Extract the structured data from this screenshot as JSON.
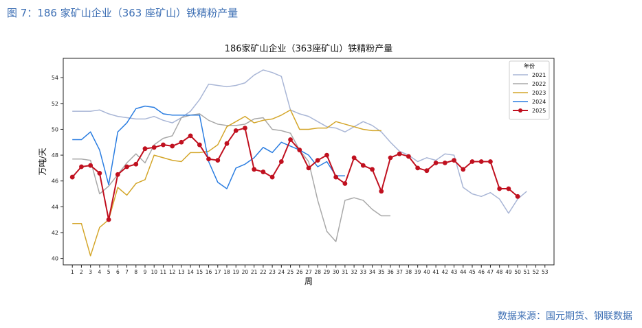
{
  "figure_caption": "图 7：186 家矿山企业（363 座矿山）铁精粉产量",
  "source_note": "数据来源：国元期货、钢联数据",
  "chart_data": {
    "type": "line",
    "title": "186家矿山企业（363座矿山）铁精粉产量",
    "xlabel": "周",
    "ylabel": "万吨/天",
    "ylim": [
      39.5,
      55.5
    ],
    "yticks": [
      40,
      42,
      44,
      46,
      48,
      50,
      52,
      54
    ],
    "x": [
      1,
      2,
      3,
      4,
      5,
      6,
      7,
      8,
      9,
      10,
      11,
      12,
      13,
      14,
      15,
      16,
      17,
      18,
      19,
      20,
      21,
      22,
      23,
      24,
      25,
      26,
      27,
      28,
      29,
      30,
      31,
      32,
      33,
      34,
      35,
      36,
      37,
      38,
      39,
      40,
      41,
      42,
      43,
      44,
      45,
      46,
      47,
      48,
      49,
      50,
      51,
      52,
      53
    ],
    "legend_title": "年份",
    "legend_position": "top-right",
    "grid": false,
    "series": [
      {
        "name": "2021",
        "color": "#a9b6d6",
        "marker": false,
        "values": [
          51.4,
          51.4,
          51.4,
          51.5,
          51.2,
          51.0,
          50.9,
          50.8,
          50.8,
          51.0,
          50.7,
          50.5,
          50.9,
          51.4,
          52.3,
          53.5,
          53.4,
          53.3,
          53.4,
          53.6,
          54.2,
          54.6,
          54.4,
          54.1,
          51.5,
          51.2,
          51.0,
          50.6,
          50.2,
          50.1,
          49.8,
          50.2,
          50.6,
          50.3,
          49.8,
          49.0,
          48.3,
          48.0,
          47.5,
          47.8,
          47.6,
          48.1,
          48.0,
          45.5,
          45.0,
          44.8,
          45.1,
          44.6,
          43.5,
          44.6,
          45.2,
          null,
          null
        ]
      },
      {
        "name": "2022",
        "color": "#a9a9a9",
        "marker": false,
        "values": [
          47.7,
          47.7,
          47.6,
          45.0,
          45.6,
          46.5,
          47.4,
          48.1,
          47.4,
          48.8,
          49.3,
          49.5,
          50.9,
          51.1,
          51.2,
          50.7,
          50.4,
          50.3,
          50.3,
          50.4,
          50.8,
          50.9,
          50.0,
          49.9,
          49.7,
          48.4,
          47.5,
          44.5,
          42.1,
          41.3,
          44.5,
          44.7,
          44.5,
          43.8,
          43.3,
          43.3,
          null,
          null,
          null,
          null,
          null,
          null,
          null,
          null,
          null,
          null,
          null,
          null,
          null,
          null,
          null,
          null,
          null
        ]
      },
      {
        "name": "2023",
        "color": "#d4a62a",
        "marker": false,
        "values": [
          42.7,
          42.7,
          40.2,
          42.4,
          43.0,
          45.5,
          44.9,
          45.8,
          46.1,
          48.0,
          47.8,
          47.6,
          47.5,
          48.2,
          48.2,
          48.3,
          48.8,
          50.2,
          50.6,
          51.0,
          50.5,
          50.7,
          50.8,
          51.1,
          51.5,
          50.0,
          50.0,
          50.1,
          50.1,
          50.6,
          50.4,
          50.2,
          50.0,
          49.9,
          49.9,
          null,
          null,
          null,
          null,
          null,
          null,
          null,
          null,
          null,
          null,
          null,
          null,
          null,
          null,
          null,
          null,
          null,
          null
        ]
      },
      {
        "name": "2024",
        "color": "#2a7de1",
        "marker": false,
        "values": [
          49.2,
          49.2,
          49.8,
          48.4,
          45.7,
          49.8,
          50.5,
          51.6,
          51.8,
          51.7,
          51.2,
          51.1,
          51.1,
          51.1,
          51.1,
          47.5,
          45.9,
          45.4,
          47.0,
          47.3,
          47.8,
          48.6,
          48.2,
          49.0,
          48.7,
          48.4,
          48.0,
          47.1,
          47.5,
          46.4,
          46.4,
          null,
          null,
          null,
          null,
          null,
          null,
          null,
          null,
          null,
          null,
          null,
          null,
          null,
          null,
          null,
          null,
          null,
          null,
          null,
          null,
          null,
          null
        ]
      },
      {
        "name": "2025",
        "color": "#c0101f",
        "marker": true,
        "values": [
          46.3,
          47.1,
          47.2,
          46.6,
          43.0,
          46.5,
          47.1,
          47.3,
          48.5,
          48.6,
          48.8,
          48.7,
          49.0,
          49.5,
          48.8,
          47.7,
          47.6,
          48.9,
          49.9,
          50.1,
          46.9,
          46.7,
          46.3,
          47.5,
          49.2,
          48.4,
          47.0,
          47.6,
          48.0,
          46.3,
          45.8,
          47.8,
          47.2,
          46.9,
          45.2,
          47.8,
          48.1,
          47.9,
          47.0,
          46.8,
          47.4,
          47.4,
          47.6,
          46.9,
          47.5,
          47.5,
          47.5,
          45.4,
          45.4,
          44.8,
          null,
          null,
          null
        ]
      }
    ]
  }
}
